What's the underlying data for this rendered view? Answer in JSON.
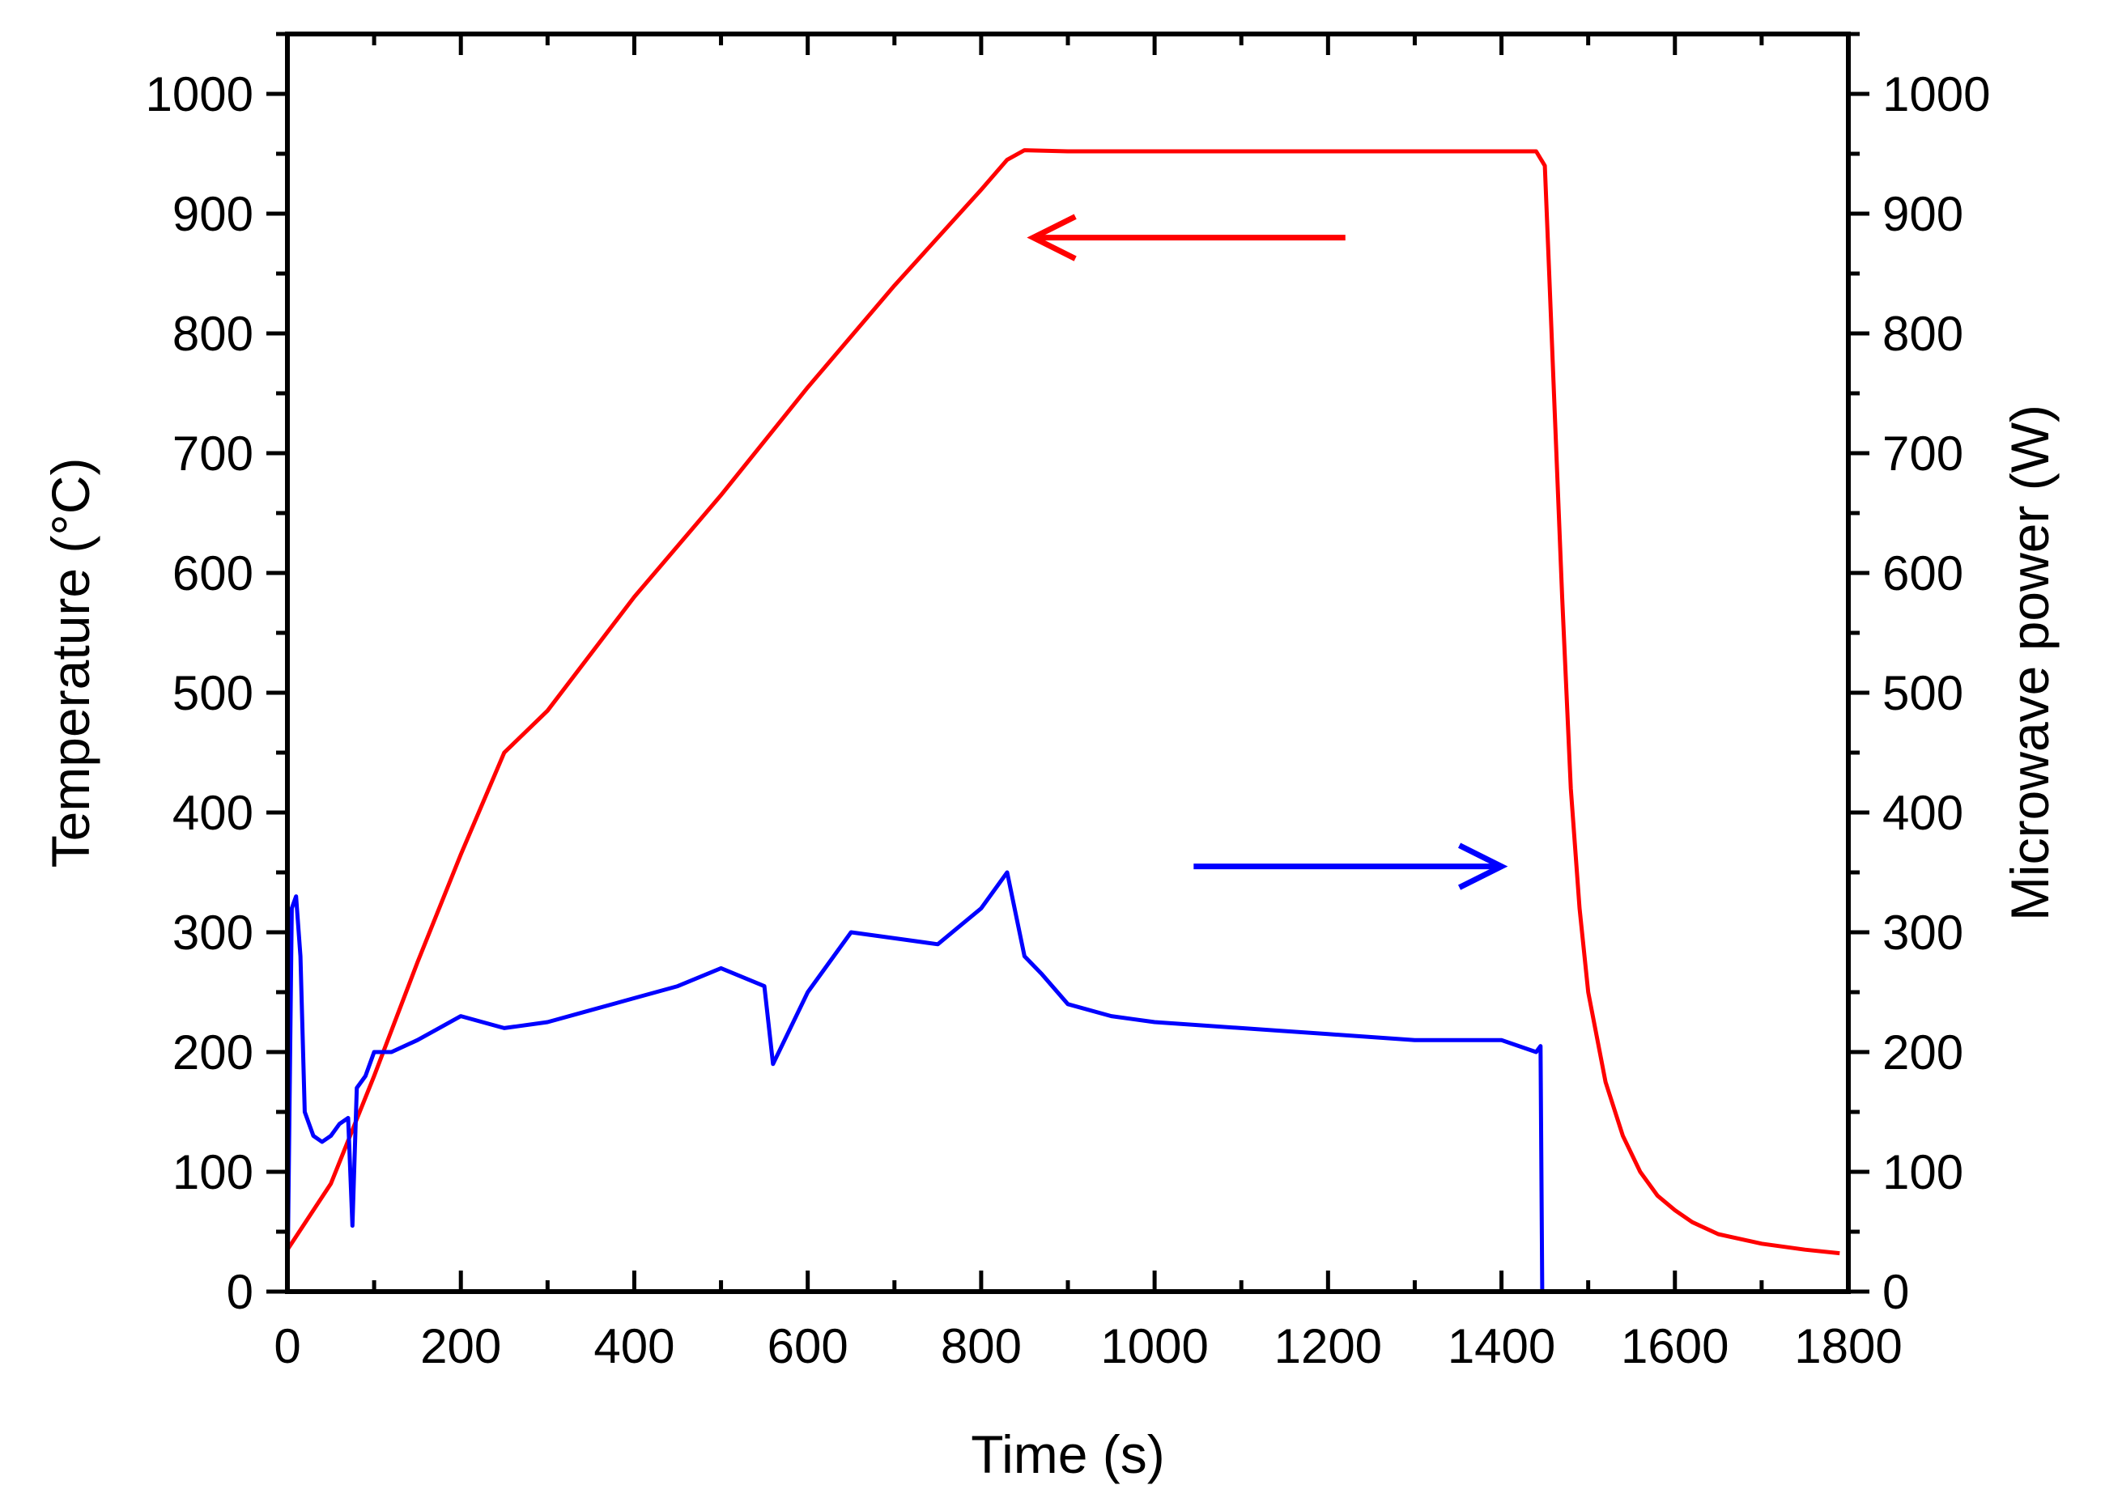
{
  "chart_data": {
    "type": "line",
    "xlabel": "Time (s)",
    "ylabel_left": "Temperature (°C)",
    "ylabel_right": "Microwave power (W)",
    "xlim": [
      0,
      1800
    ],
    "ylim_left": [
      0,
      1050
    ],
    "ylim_right": [
      0,
      1050
    ],
    "x_ticks": [
      0,
      200,
      400,
      600,
      800,
      1000,
      1200,
      1400,
      1600,
      1800
    ],
    "y_ticks_left": [
      0,
      100,
      200,
      300,
      400,
      500,
      600,
      700,
      800,
      900,
      1000
    ],
    "y_ticks_right": [
      0,
      100,
      200,
      300,
      400,
      500,
      600,
      700,
      800,
      900,
      1000
    ],
    "grid": false,
    "series": [
      {
        "axis": "left",
        "color": "#ff0000",
        "x": [
          0,
          50,
          100,
          150,
          200,
          250,
          300,
          400,
          500,
          600,
          700,
          800,
          830,
          850,
          900,
          1000,
          1100,
          1200,
          1300,
          1400,
          1440,
          1450,
          1455,
          1460,
          1470,
          1480,
          1490,
          1500,
          1520,
          1540,
          1560,
          1580,
          1600,
          1620,
          1650,
          1700,
          1750,
          1790
        ],
        "y": [
          35,
          90,
          180,
          275,
          365,
          450,
          485,
          580,
          665,
          755,
          840,
          920,
          945,
          953,
          952,
          952,
          952,
          952,
          952,
          952,
          952,
          940,
          850,
          760,
          580,
          420,
          320,
          250,
          175,
          130,
          100,
          80,
          68,
          58,
          48,
          40,
          35,
          32
        ]
      },
      {
        "axis": "right",
        "color": "#0000ff",
        "x": [
          0,
          5,
          10,
          15,
          20,
          30,
          40,
          50,
          60,
          70,
          75,
          80,
          90,
          100,
          120,
          150,
          200,
          250,
          300,
          350,
          400,
          450,
          500,
          550,
          560,
          600,
          650,
          700,
          750,
          800,
          830,
          850,
          870,
          900,
          950,
          1000,
          1100,
          1200,
          1300,
          1400,
          1440,
          1445,
          1447
        ],
        "y": [
          0,
          320,
          330,
          280,
          150,
          130,
          125,
          130,
          140,
          145,
          55,
          170,
          180,
          200,
          200,
          210,
          230,
          220,
          225,
          235,
          245,
          255,
          270,
          255,
          190,
          250,
          300,
          295,
          290,
          320,
          350,
          280,
          265,
          240,
          230,
          225,
          220,
          215,
          210,
          210,
          200,
          205,
          0
        ]
      }
    ],
    "annotations": [
      {
        "type": "arrow",
        "direction": "left",
        "color": "#ff0000",
        "x_from": 1220,
        "x_to": 860,
        "y": 880,
        "axis": "left"
      },
      {
        "type": "arrow",
        "direction": "right",
        "color": "#0000ff",
        "x_from": 1045,
        "x_to": 1400,
        "y": 355,
        "axis": "right"
      }
    ]
  }
}
